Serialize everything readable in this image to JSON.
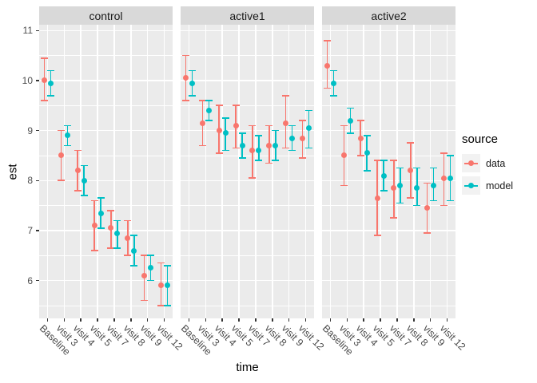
{
  "chart_data": {
    "type": "pointrange",
    "description": "Faceted dodged point estimates with error bars, ggplot2 grey theme",
    "xlabel": "time",
    "ylabel": "est",
    "legend_title": "source",
    "legend_position": "right",
    "grid": true,
    "y_ticks": [
      6,
      7,
      8,
      9,
      10,
      11
    ],
    "ylim": [
      5.25,
      11.1
    ],
    "categories": [
      "Baseline",
      "visit 3",
      "visit 4",
      "visit 5",
      "visit 7",
      "visit 8",
      "visit 9",
      "visit 12"
    ],
    "series": [
      {
        "name": "data",
        "color": "#F8766D"
      },
      {
        "name": "model",
        "color": "#00BFC4"
      }
    ],
    "point_format": "[est, ci_low, ci_high]",
    "facets": [
      {
        "label": "control",
        "series": {
          "data": [
            [
              10.0,
              9.6,
              10.45
            ],
            [
              8.5,
              8.0,
              9.0
            ],
            [
              8.2,
              7.8,
              8.6
            ],
            [
              7.1,
              6.6,
              7.6
            ],
            [
              7.05,
              6.65,
              7.4
            ],
            [
              6.85,
              6.5,
              7.2
            ],
            [
              6.1,
              5.6,
              6.5
            ],
            [
              5.9,
              5.5,
              6.35
            ]
          ],
          "model": [
            [
              9.95,
              9.7,
              10.2
            ],
            [
              8.9,
              8.7,
              9.1
            ],
            [
              8.0,
              7.7,
              8.3
            ],
            [
              7.35,
              7.05,
              7.65
            ],
            [
              6.95,
              6.65,
              7.2
            ],
            [
              6.6,
              6.3,
              6.9
            ],
            [
              6.25,
              6.0,
              6.5
            ],
            [
              5.9,
              5.5,
              6.3
            ]
          ]
        }
      },
      {
        "label": "active1",
        "series": {
          "data": [
            [
              10.05,
              9.6,
              10.5
            ],
            [
              9.15,
              8.7,
              9.6
            ],
            [
              9.0,
              8.55,
              9.5
            ],
            [
              9.1,
              8.65,
              9.5
            ],
            [
              8.6,
              8.05,
              9.1
            ],
            [
              8.7,
              8.35,
              9.1
            ],
            [
              9.15,
              8.65,
              9.7
            ],
            [
              8.85,
              8.45,
              9.2
            ]
          ],
          "model": [
            [
              9.95,
              9.7,
              10.2
            ],
            [
              9.4,
              9.2,
              9.6
            ],
            [
              8.95,
              8.6,
              9.25
            ],
            [
              8.7,
              8.45,
              8.95
            ],
            [
              8.6,
              8.4,
              8.9
            ],
            [
              8.7,
              8.4,
              9.0
            ],
            [
              8.85,
              8.6,
              9.1
            ],
            [
              9.05,
              8.65,
              9.4
            ]
          ]
        }
      },
      {
        "label": "active2",
        "series": {
          "data": [
            [
              10.3,
              9.85,
              10.8
            ],
            [
              8.5,
              7.9,
              9.1
            ],
            [
              8.85,
              8.5,
              9.2
            ],
            [
              7.65,
              6.9,
              8.4
            ],
            [
              7.85,
              7.25,
              8.4
            ],
            [
              8.2,
              7.65,
              8.75
            ],
            [
              7.45,
              6.95,
              7.95
            ],
            [
              8.05,
              7.5,
              8.55
            ]
          ],
          "model": [
            [
              9.95,
              9.7,
              10.2
            ],
            [
              9.2,
              8.95,
              9.45
            ],
            [
              8.55,
              8.2,
              8.9
            ],
            [
              8.1,
              7.8,
              8.4
            ],
            [
              7.9,
              7.55,
              8.25
            ],
            [
              7.85,
              7.5,
              8.25
            ],
            [
              7.9,
              7.6,
              8.25
            ],
            [
              8.05,
              7.6,
              8.5
            ]
          ]
        }
      }
    ],
    "colors": {
      "panel_bg": "#EBEBEB",
      "strip_bg": "#D9D9D9",
      "strip_text": "#1A1A1A",
      "gridline": "#FFFFFF",
      "axis_text": "#4D4D4D",
      "tick_mark": "#333333",
      "data": "#F8766D",
      "model": "#00BFC4"
    }
  }
}
